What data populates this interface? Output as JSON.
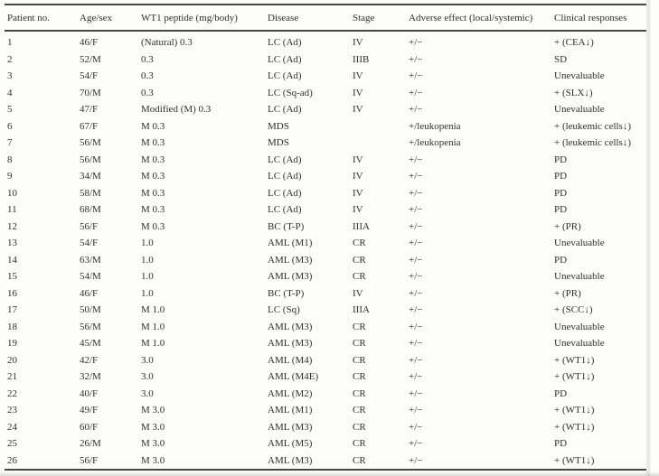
{
  "page": {
    "background": "#fcfcfb",
    "text_color": "#303030",
    "line_color": "#474747"
  },
  "table": {
    "columns": [
      "Patient no.",
      "Age/sex",
      "WT1 peptide (mg/body)",
      "Disease",
      "Stage",
      "Adverse effect (local/systemic)",
      "Clinical responses"
    ],
    "rows": [
      [
        "1",
        "46/F",
        "(Natural) 0.3",
        "LC (Ad)",
        "IV",
        "+/−",
        "+ (CEA↓)"
      ],
      [
        "2",
        "52/M",
        "0.3",
        "LC (Ad)",
        "IIIB",
        "+/−",
        "SD"
      ],
      [
        "3",
        "54/F",
        "0.3",
        "LC (Ad)",
        "IV",
        "+/−",
        "Unevaluable"
      ],
      [
        "4",
        "70/M",
        "0.3",
        "LC (Sq-ad)",
        "IV",
        "+/−",
        "+ (SLX↓)"
      ],
      [
        "5",
        "47/F",
        "Modified (M) 0.3",
        "LC (Ad)",
        "IV",
        "+/−",
        "Unevaluable"
      ],
      [
        "6",
        "67/F",
        "M 0.3",
        "MDS",
        "",
        "+/leukopenia",
        "+ (leukemic cells↓)"
      ],
      [
        "7",
        "56/M",
        "M 0.3",
        "MDS",
        "",
        "+/leukopenia",
        "+ (leukemic cells↓)"
      ],
      [
        "8",
        "56/M",
        "M 0.3",
        "LC (Ad)",
        "IV",
        "+/−",
        "PD"
      ],
      [
        "9",
        "34/M",
        "M 0.3",
        "LC (Ad)",
        "IV",
        "+/−",
        "PD"
      ],
      [
        "10",
        "58/M",
        "M 0.3",
        "LC (Ad)",
        "IV",
        "+/−",
        "PD"
      ],
      [
        "11",
        "68/M",
        "M 0.3",
        "LC (Ad)",
        "IV",
        "+/−",
        "PD"
      ],
      [
        "12",
        "56/F",
        "M 0.3",
        "BC (T-P)",
        "IIIA",
        "+/−",
        "+ (PR)"
      ],
      [
        "13",
        "54/F",
        "1.0",
        "AML (M1)",
        "CR",
        "+/−",
        "Unevaluable"
      ],
      [
        "14",
        "63/M",
        "1.0",
        "AML (M3)",
        "CR",
        "+/−",
        "PD"
      ],
      [
        "15",
        "54/M",
        "1.0",
        "AML (M3)",
        "CR",
        "+/−",
        "Unevaluable"
      ],
      [
        "16",
        "46/F",
        "1.0",
        "BC (T-P)",
        "IV",
        "+/−",
        "+ (PR)"
      ],
      [
        "17",
        "50/M",
        "M 1.0",
        "LC (Sq)",
        "IIIA",
        "+/−",
        "+ (SCC↓)"
      ],
      [
        "18",
        "56/M",
        "M 1.0",
        "AML (M3)",
        "CR",
        "+/−",
        "Unevaluable"
      ],
      [
        "19",
        "45/M",
        "M 1.0",
        "AML (M3)",
        "CR",
        "+/−",
        "Unevaluable"
      ],
      [
        "20",
        "42/F",
        "3.0",
        "AML (M4)",
        "CR",
        "+/−",
        "+ (WT1↓)"
      ],
      [
        "21",
        "32/M",
        "3.0",
        "AML (M4E)",
        "CR",
        "+/−",
        "+ (WT1↓)"
      ],
      [
        "22",
        "40/F",
        "3.0",
        "AML (M2)",
        "CR",
        "+/−",
        "PD"
      ],
      [
        "23",
        "49/F",
        "M 3.0",
        "AML (M1)",
        "CR",
        "+/−",
        "+ (WT1↓)"
      ],
      [
        "24",
        "60/F",
        "M 3.0",
        "AML (M3)",
        "CR",
        "+/−",
        "+ (WT1↓)"
      ],
      [
        "25",
        "26/M",
        "M 3.0",
        "AML (M5)",
        "CR",
        "+/−",
        "PD"
      ],
      [
        "26",
        "56/F",
        "M 3.0",
        "AML (M3)",
        "CR",
        "+/−",
        "+ (WT1↓)"
      ]
    ]
  }
}
